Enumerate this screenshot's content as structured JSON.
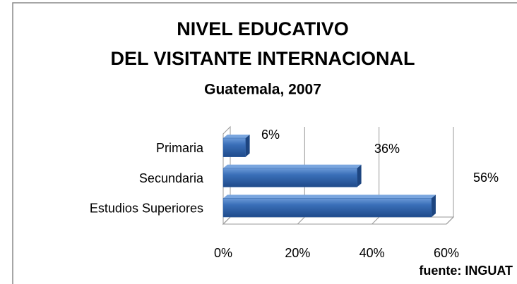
{
  "chart_data": {
    "type": "bar",
    "orientation": "horizontal",
    "title": [
      "NIVEL EDUCATIVO",
      "DEL VISITANTE INTERNACIONAL"
    ],
    "subtitle": "Guatemala, 2007",
    "source": "fuente: INGUAT",
    "categories": [
      "Primaria",
      "Secundaria",
      "Estudios Superiores"
    ],
    "values": [
      6,
      36,
      56
    ],
    "value_labels": [
      "6%",
      "36%",
      "56%"
    ],
    "color": "#2f62a8",
    "xlim": [
      0,
      60
    ],
    "xticks": [
      {
        "value": 0,
        "label": "0%"
      },
      {
        "value": 20,
        "label": "20%"
      },
      {
        "value": 40,
        "label": "40%"
      },
      {
        "value": 60,
        "label": "60%"
      }
    ],
    "grid": true
  }
}
